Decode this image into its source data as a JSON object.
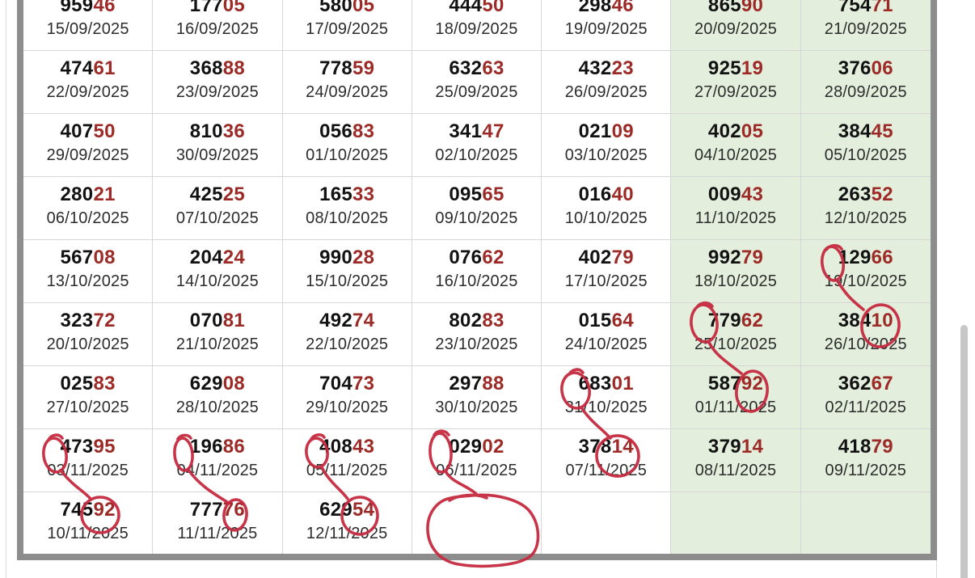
{
  "colors": {
    "number_black": "#121212",
    "number_red": "#9c2a27",
    "date_text": "#2c2c2c",
    "weekend_bg": "#e3eedc",
    "weekday_bg": "#ffffff",
    "cell_border": "#d6d6d6",
    "frame_border": "#8d8d8d",
    "panel_border": "#dadada",
    "annotation": "#c62b40",
    "scrollbar_thumb": "#c7c7c7"
  },
  "calendar": {
    "red_digit_count": 2,
    "weekend_columns": [
      5,
      6
    ],
    "rows": [
      [
        {
          "num": "95946",
          "date": "15/09/2025"
        },
        {
          "num": "17705",
          "date": "16/09/2025"
        },
        {
          "num": "58005",
          "date": "17/09/2025"
        },
        {
          "num": "44450",
          "date": "18/09/2025"
        },
        {
          "num": "29846",
          "date": "19/09/2025"
        },
        {
          "num": "86590",
          "date": "20/09/2025"
        },
        {
          "num": "75471",
          "date": "21/09/2025"
        }
      ],
      [
        {
          "num": "47461",
          "date": "22/09/2025"
        },
        {
          "num": "36888",
          "date": "23/09/2025"
        },
        {
          "num": "77859",
          "date": "24/09/2025"
        },
        {
          "num": "63263",
          "date": "25/09/2025"
        },
        {
          "num": "43223",
          "date": "26/09/2025"
        },
        {
          "num": "92519",
          "date": "27/09/2025"
        },
        {
          "num": "37606",
          "date": "28/09/2025"
        }
      ],
      [
        {
          "num": "40750",
          "date": "29/09/2025"
        },
        {
          "num": "81036",
          "date": "30/09/2025"
        },
        {
          "num": "05683",
          "date": "01/10/2025"
        },
        {
          "num": "34147",
          "date": "02/10/2025"
        },
        {
          "num": "02109",
          "date": "03/10/2025"
        },
        {
          "num": "40205",
          "date": "04/10/2025"
        },
        {
          "num": "38445",
          "date": "05/10/2025"
        }
      ],
      [
        {
          "num": "28021",
          "date": "06/10/2025"
        },
        {
          "num": "42525",
          "date": "07/10/2025"
        },
        {
          "num": "16533",
          "date": "08/10/2025"
        },
        {
          "num": "09565",
          "date": "09/10/2025"
        },
        {
          "num": "01640",
          "date": "10/10/2025"
        },
        {
          "num": "00943",
          "date": "11/10/2025"
        },
        {
          "num": "26352",
          "date": "12/10/2025"
        }
      ],
      [
        {
          "num": "56708",
          "date": "13/10/2025"
        },
        {
          "num": "20424",
          "date": "14/10/2025"
        },
        {
          "num": "99028",
          "date": "15/10/2025"
        },
        {
          "num": "07662",
          "date": "16/10/2025"
        },
        {
          "num": "40279",
          "date": "17/10/2025"
        },
        {
          "num": "99279",
          "date": "18/10/2025"
        },
        {
          "num": "12966",
          "date": "19/10/2025"
        }
      ],
      [
        {
          "num": "32372",
          "date": "20/10/2025"
        },
        {
          "num": "07081",
          "date": "21/10/2025"
        },
        {
          "num": "49274",
          "date": "22/10/2025"
        },
        {
          "num": "80283",
          "date": "23/10/2025"
        },
        {
          "num": "01564",
          "date": "24/10/2025"
        },
        {
          "num": "77962",
          "date": "25/10/2025"
        },
        {
          "num": "38410",
          "date": "26/10/2025"
        }
      ],
      [
        {
          "num": "02583",
          "date": "27/10/2025"
        },
        {
          "num": "62908",
          "date": "28/10/2025"
        },
        {
          "num": "70473",
          "date": "29/10/2025"
        },
        {
          "num": "29788",
          "date": "30/10/2025"
        },
        {
          "num": "68301",
          "date": "31/10/2025"
        },
        {
          "num": "58792",
          "date": "01/11/2025"
        },
        {
          "num": "36267",
          "date": "02/11/2025"
        }
      ],
      [
        {
          "num": "47395",
          "date": "03/11/2025"
        },
        {
          "num": "19686",
          "date": "04/11/2025"
        },
        {
          "num": "40843",
          "date": "05/11/2025"
        },
        {
          "num": "02902",
          "date": "06/11/2025"
        },
        {
          "num": "37814",
          "date": "07/11/2025"
        },
        {
          "num": "37914",
          "date": "08/11/2025"
        },
        {
          "num": "41879",
          "date": "09/11/2025"
        }
      ],
      [
        {
          "num": "74592",
          "date": "10/11/2025"
        },
        {
          "num": "77776",
          "date": "11/11/2025"
        },
        {
          "num": "62954",
          "date": "12/11/2025"
        },
        {
          "num": "",
          "date": ""
        },
        {
          "num": "",
          "date": ""
        },
        {
          "num": "",
          "date": ""
        },
        {
          "num": "",
          "date": ""
        }
      ]
    ]
  },
  "annotations": {
    "style": "hand-drawn red pen circles with connector lines",
    "links": [
      {
        "from": "digit 1 of 12966 (19/10/2025)",
        "to": "digits 10 of 38410 (26/10/2025)"
      },
      {
        "from": "digit 7 of 77962 (25/10/2025)",
        "to": "digits 92 of 58792 (01/11/2025)"
      },
      {
        "from": "digit 6 of 68301 (31/10/2025)",
        "to": "digits 14 of 37814 (07/11/2025)"
      },
      {
        "from": "digit 4 of 47395 (03/11/2025)",
        "to": "digits 92 of 74592 (10/11/2025)"
      },
      {
        "from": "digit 1 of 19686 (04/11/2025)",
        "to": "digit 6 of 77776 (11/11/2025)"
      },
      {
        "from": "digit 4 of 40843 (05/11/2025)",
        "to": "digits 54 of 62954 (12/11/2025)"
      },
      {
        "from": "digit 0 of 02902 (06/11/2025)",
        "to": "big empty circle in blank next-draw cell"
      }
    ]
  }
}
